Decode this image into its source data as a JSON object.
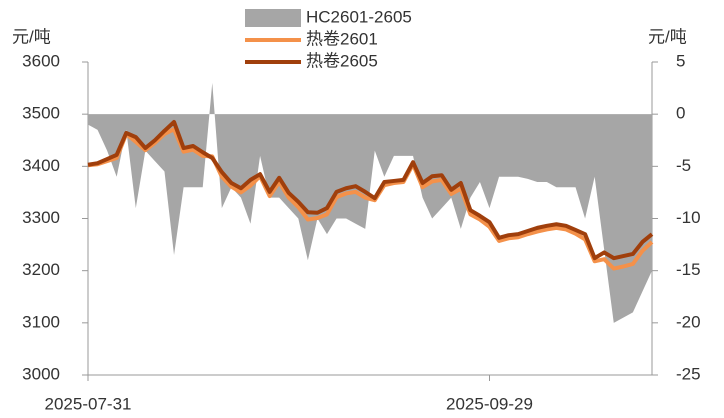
{
  "chart_data": {
    "type": "line",
    "y_label": "元/吨",
    "y2_label": "元/吨",
    "categories": [
      "2025-07-31",
      null,
      null,
      null,
      null,
      null,
      null,
      null,
      null,
      null,
      null,
      null,
      null,
      null,
      null,
      null,
      null,
      null,
      null,
      null,
      null,
      null,
      null,
      null,
      null,
      null,
      null,
      null,
      null,
      null,
      null,
      null,
      null,
      null,
      null,
      null,
      null,
      null,
      null,
      null,
      null,
      null,
      "2025-09-29",
      null,
      null,
      null,
      null,
      null,
      null,
      null,
      null,
      null,
      null,
      null,
      null,
      null,
      null,
      null,
      null,
      null
    ],
    "series": [
      {
        "name": "HC2601-2605",
        "type": "area",
        "axis": "y2",
        "color": "#a6a6a6",
        "values": [
          -1,
          -1.5,
          -3.5,
          -6,
          -1.5,
          -9,
          -3.5,
          -4.5,
          -5.5,
          -13.5,
          -7,
          -7,
          -7,
          3,
          -9,
          -7,
          -8,
          -10.5,
          -4,
          -8,
          -8,
          -9,
          -10,
          -14,
          -10,
          -11.5,
          -10,
          -10,
          -10.5,
          -11,
          -3.5,
          -6,
          -4,
          -4,
          -4,
          -8,
          -10,
          -9,
          -8,
          -11,
          -8,
          -6.5,
          -9,
          -6,
          -6,
          -6,
          -6.2,
          -6.5,
          -6.5,
          -7,
          -7,
          -7,
          -10,
          -6,
          -13,
          -20,
          -19.5,
          -19,
          -17,
          -15
        ]
      },
      {
        "name": "热卷2601",
        "type": "line",
        "color": "#f4914a",
        "values": [
          3402,
          3404,
          3410,
          3416,
          3462,
          3447,
          3431,
          3445,
          3462,
          3471,
          3428,
          3432,
          3420,
          3419,
          3380,
          3361,
          3350,
          3363,
          3381,
          3343,
          3370,
          3340,
          3322,
          3298,
          3301,
          3308,
          3341,
          3348,
          3351,
          3340,
          3335,
          3364,
          3368,
          3370,
          3404,
          3360,
          3371,
          3374,
          3347,
          3357,
          3308,
          3298,
          3284,
          3257,
          3262,
          3264,
          3270,
          3275,
          3279,
          3282,
          3279,
          3271,
          3260,
          3218,
          3222,
          3204,
          3208,
          3213,
          3238,
          3255
        ]
      },
      {
        "name": "热卷2605",
        "type": "line",
        "color": "#a03f0c",
        "values": [
          3403,
          3406,
          3414,
          3422,
          3464,
          3456,
          3435,
          3450,
          3468,
          3485,
          3435,
          3439,
          3427,
          3416,
          3389,
          3368,
          3358,
          3374,
          3385,
          3351,
          3378,
          3349,
          3332,
          3312,
          3311,
          3320,
          3351,
          3358,
          3362,
          3351,
          3339,
          3370,
          3372,
          3374,
          3408,
          3368,
          3381,
          3383,
          3355,
          3368,
          3316,
          3305,
          3293,
          3263,
          3268,
          3270,
          3276,
          3282,
          3286,
          3289,
          3286,
          3278,
          3270,
          3224,
          3235,
          3224,
          3228,
          3232,
          3255,
          3270
        ]
      }
    ],
    "ylim": [
      3000,
      3600
    ],
    "yticks": [
      3000,
      3100,
      3200,
      3300,
      3400,
      3500,
      3600
    ],
    "y2lim": [
      -25,
      5
    ],
    "y2ticks": [
      -25,
      -20,
      -15,
      -10,
      -5,
      0,
      5
    ],
    "grid": false,
    "legend": "top"
  }
}
